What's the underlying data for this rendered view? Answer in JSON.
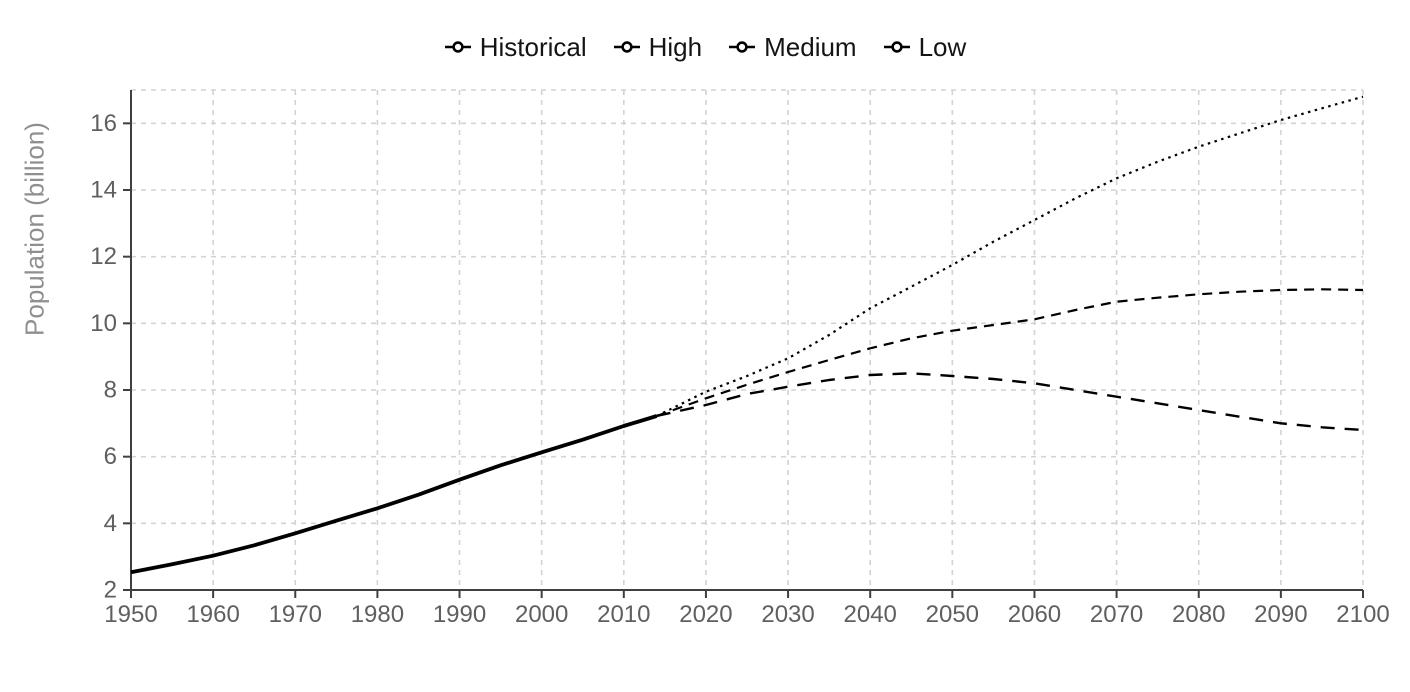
{
  "chart_data": {
    "type": "line",
    "title": "",
    "xlabel": "",
    "ylabel": "Population (billion)",
    "xlim": [
      1950,
      2100
    ],
    "ylim": [
      2,
      17
    ],
    "x_ticks": [
      1950,
      1960,
      1970,
      1980,
      1990,
      2000,
      2010,
      2020,
      2030,
      2040,
      2050,
      2060,
      2070,
      2080,
      2090,
      2100
    ],
    "y_ticks": [
      2,
      4,
      6,
      8,
      10,
      12,
      14,
      16
    ],
    "grid": "dashed-gray",
    "legend_position": "top-center",
    "series": [
      {
        "name": "Historical",
        "linestyle": "solid",
        "points": [
          [
            1950,
            2.53
          ],
          [
            1955,
            2.77
          ],
          [
            1960,
            3.03
          ],
          [
            1965,
            3.34
          ],
          [
            1970,
            3.7
          ],
          [
            1975,
            4.08
          ],
          [
            1980,
            4.45
          ],
          [
            1985,
            4.86
          ],
          [
            1990,
            5.31
          ],
          [
            1995,
            5.74
          ],
          [
            2000,
            6.13
          ],
          [
            2005,
            6.51
          ],
          [
            2010,
            6.92
          ],
          [
            2014,
            7.22
          ]
        ]
      },
      {
        "name": "High",
        "linestyle": "dotted",
        "points": [
          [
            2014,
            7.22
          ],
          [
            2020,
            7.95
          ],
          [
            2025,
            8.42
          ],
          [
            2030,
            8.95
          ],
          [
            2035,
            9.65
          ],
          [
            2040,
            10.45
          ],
          [
            2045,
            11.1
          ],
          [
            2050,
            11.75
          ],
          [
            2055,
            12.45
          ],
          [
            2060,
            13.1
          ],
          [
            2065,
            13.75
          ],
          [
            2070,
            14.35
          ],
          [
            2075,
            14.85
          ],
          [
            2080,
            15.3
          ],
          [
            2085,
            15.7
          ],
          [
            2090,
            16.1
          ],
          [
            2095,
            16.45
          ],
          [
            2100,
            16.8
          ]
        ]
      },
      {
        "name": "Medium",
        "linestyle": "dashed",
        "points": [
          [
            2014,
            7.22
          ],
          [
            2020,
            7.75
          ],
          [
            2025,
            8.16
          ],
          [
            2030,
            8.54
          ],
          [
            2035,
            8.9
          ],
          [
            2040,
            9.25
          ],
          [
            2045,
            9.55
          ],
          [
            2050,
            9.78
          ],
          [
            2055,
            9.95
          ],
          [
            2060,
            10.12
          ],
          [
            2065,
            10.4
          ],
          [
            2070,
            10.65
          ],
          [
            2075,
            10.77
          ],
          [
            2080,
            10.87
          ],
          [
            2085,
            10.95
          ],
          [
            2090,
            11.0
          ],
          [
            2095,
            11.02
          ],
          [
            2100,
            11.0
          ]
        ]
      },
      {
        "name": "Low",
        "linestyle": "longdash",
        "points": [
          [
            2014,
            7.22
          ],
          [
            2020,
            7.55
          ],
          [
            2025,
            7.88
          ],
          [
            2030,
            8.1
          ],
          [
            2035,
            8.3
          ],
          [
            2040,
            8.45
          ],
          [
            2045,
            8.5
          ],
          [
            2050,
            8.42
          ],
          [
            2055,
            8.33
          ],
          [
            2060,
            8.2
          ],
          [
            2065,
            8.0
          ],
          [
            2070,
            7.8
          ],
          [
            2075,
            7.6
          ],
          [
            2080,
            7.4
          ],
          [
            2085,
            7.2
          ],
          [
            2090,
            7.0
          ],
          [
            2095,
            6.88
          ],
          [
            2100,
            6.8
          ]
        ]
      }
    ]
  },
  "colors": {
    "line": "#000000",
    "grid": "#d3d3d3",
    "axis": "#404040",
    "tick_label": "#5f5f5f",
    "axis_title": "#8f8f8f",
    "legend_text": "#141414",
    "background": "#ffffff"
  }
}
